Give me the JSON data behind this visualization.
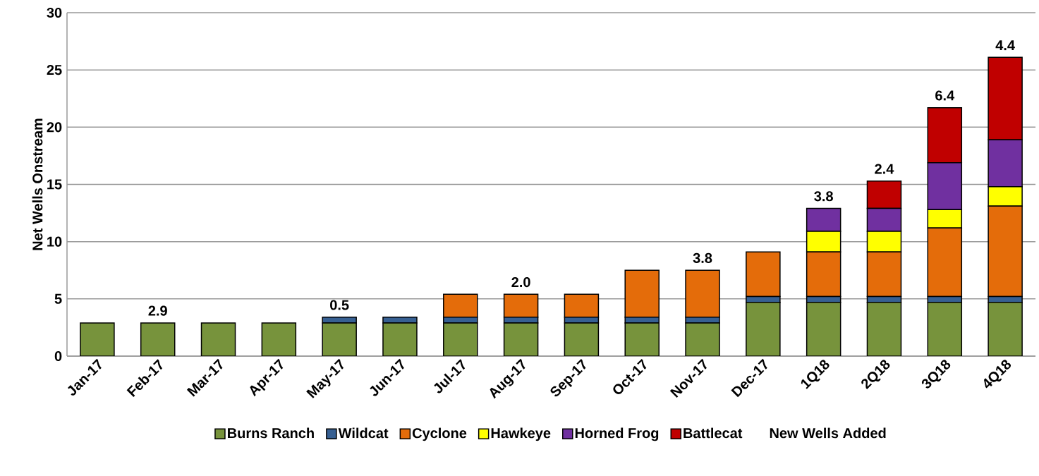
{
  "chart_data": {
    "type": "bar",
    "stacked": true,
    "ylabel": "Net Wells Onstream",
    "categories": [
      "Jan-17",
      "Feb-17",
      "Mar-17",
      "Apr-17",
      "May-17",
      "Jun-17",
      "Jul-17",
      "Aug-17",
      "Sep-17",
      "Oct-17",
      "Nov-17",
      "Dec-17",
      "1Q18",
      "2Q18",
      "3Q18",
      "4Q18"
    ],
    "series": [
      {
        "name": "Burns Ranch",
        "color": "#77933c",
        "values": [
          2.9,
          2.9,
          2.9,
          2.9,
          2.9,
          2.9,
          2.9,
          2.9,
          2.9,
          2.9,
          2.9,
          4.7,
          4.7,
          4.7,
          4.7,
          4.7
        ]
      },
      {
        "name": "Wildcat",
        "color": "#376092",
        "values": [
          0,
          0,
          0,
          0,
          0.5,
          0.5,
          0.5,
          0.5,
          0.5,
          0.5,
          0.5,
          0.5,
          0.5,
          0.5,
          0.5,
          0.5
        ]
      },
      {
        "name": "Cyclone",
        "color": "#e46c0a",
        "values": [
          0,
          0,
          0,
          0,
          0,
          0,
          2.0,
          2.0,
          2.0,
          4.1,
          4.1,
          3.9,
          3.9,
          3.9,
          6.0,
          7.9
        ]
      },
      {
        "name": "Hawkeye",
        "color": "#ffff00",
        "values": [
          0,
          0,
          0,
          0,
          0,
          0,
          0,
          0,
          0,
          0,
          0,
          0,
          1.8,
          1.8,
          1.6,
          1.7
        ]
      },
      {
        "name": "Horned Frog",
        "color": "#7030a0",
        "values": [
          0,
          0,
          0,
          0,
          0,
          0,
          0,
          0,
          0,
          0,
          0,
          0,
          2.0,
          2.0,
          4.1,
          4.1
        ]
      },
      {
        "name": "Battlecat",
        "color": "#c00000",
        "values": [
          0,
          0,
          0,
          0,
          0,
          0,
          0,
          0,
          0,
          0,
          0,
          0,
          0,
          2.4,
          4.8,
          7.2
        ]
      }
    ],
    "ylim": [
      0,
      30
    ],
    "yticks": [
      0,
      5,
      10,
      15,
      20,
      25,
      30
    ],
    "grid": "y",
    "legend": "bottom",
    "annotations": [
      "New Wells Added",
      {
        "text": "2.9",
        "x": "Feb-17",
        "y": 2.9
      },
      {
        "text": "0.5",
        "x": "May-17",
        "y": 3.4
      },
      {
        "text": "2.0",
        "x": "Aug-17",
        "y": 5.4
      },
      {
        "text": "3.8",
        "x": "Nov-17",
        "y": 7.5
      },
      {
        "text": "3.8",
        "x": "1Q18",
        "y": 12.9
      },
      {
        "text": "2.4",
        "x": "2Q18",
        "y": 15.3
      },
      {
        "text": "6.4",
        "x": "3Q18",
        "y": 21.7
      },
      {
        "text": "4.4",
        "x": "4Q18",
        "y": 26.1
      }
    ]
  }
}
